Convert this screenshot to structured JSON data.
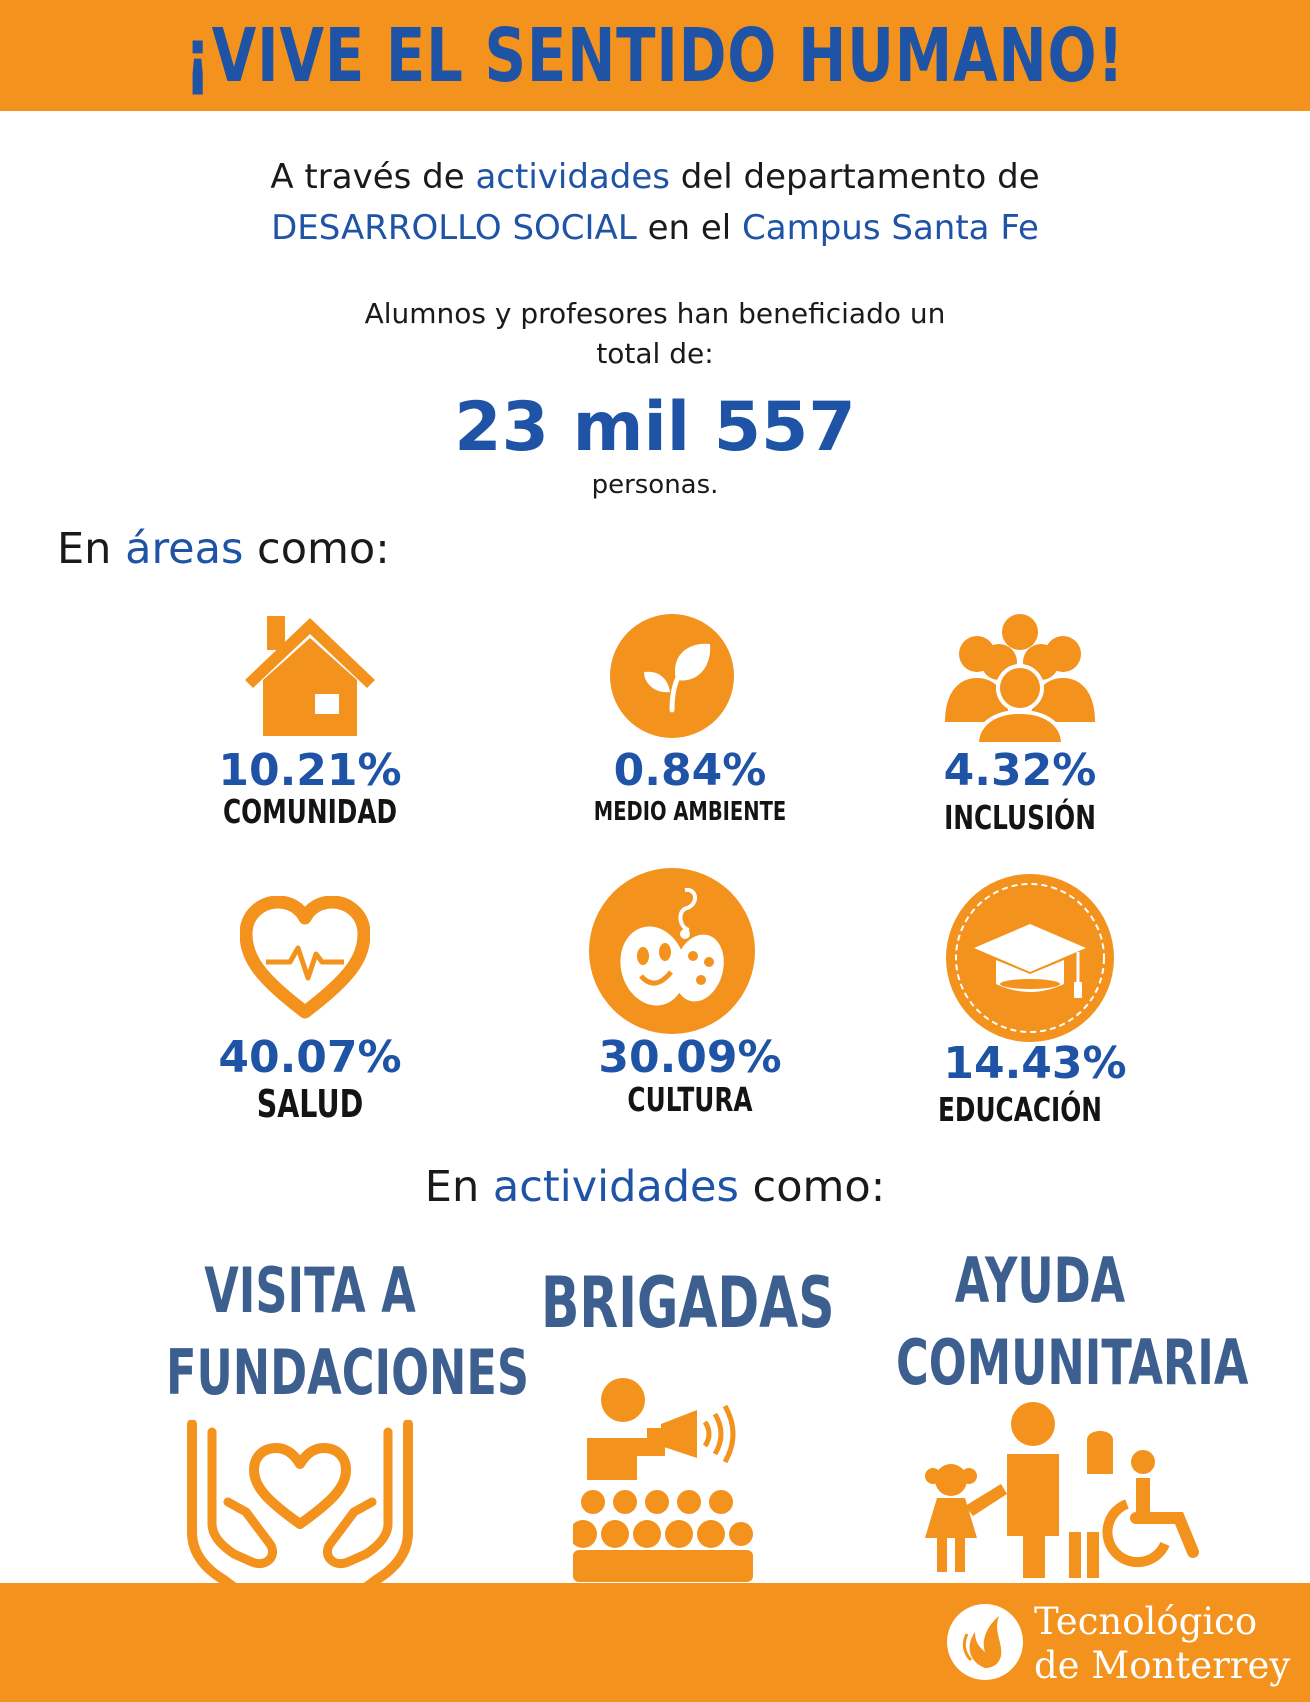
{
  "header": {
    "title": "¡VIVE EL SENTIDO HUMANO!"
  },
  "intro": {
    "line1_a": "A través de ",
    "line1_b": "actividades",
    "line1_c": " del departamento de",
    "line2_a": "DESARROLLO SOCIAL",
    "line2_b": " en el ",
    "line2_c": "Campus Santa Fe"
  },
  "summary": {
    "line1": "Alumnos y profesores han beneficiado un",
    "line2": "total de:",
    "number": "23 mil 557",
    "unit": "personas."
  },
  "areas_heading": {
    "a": "En ",
    "b": "áreas",
    "c": " como:"
  },
  "areas": [
    {
      "icon": "house-icon",
      "percent": "10.21%",
      "label": "COMUNIDAD"
    },
    {
      "icon": "leaf-icon",
      "percent": "0.84%",
      "label": "MEDIO AMBIENTE"
    },
    {
      "icon": "people-group-icon",
      "percent": "4.32%",
      "label": "INCLUSIÓN"
    },
    {
      "icon": "heart-pulse-icon",
      "percent": "40.07%",
      "label": "SALUD"
    },
    {
      "icon": "theater-masks-icon",
      "percent": "30.09%",
      "label": "CULTURA"
    },
    {
      "icon": "graduation-cap-icon",
      "percent": "14.43%",
      "label": "EDUCACIÓN"
    }
  ],
  "activities_heading": {
    "a": "En ",
    "b": "actividades",
    "c": " como:"
  },
  "activities": [
    {
      "line1": "VISITA A",
      "line2": "FUNDACIONES",
      "icon": "hands-heart-icon"
    },
    {
      "line1": "BRIGADAS",
      "icon": "megaphone-crowd-icon"
    },
    {
      "line1": "AYUDA",
      "line2": "COMUNITARIA",
      "icon": "family-accessibility-icon"
    }
  ],
  "footer": {
    "logo_line1": "Tecnológico",
    "logo_line2": "de Monterrey"
  },
  "colors": {
    "orange": "#f3921d",
    "blue": "#1f53a6",
    "activity_blue": "#3c5f8f"
  }
}
